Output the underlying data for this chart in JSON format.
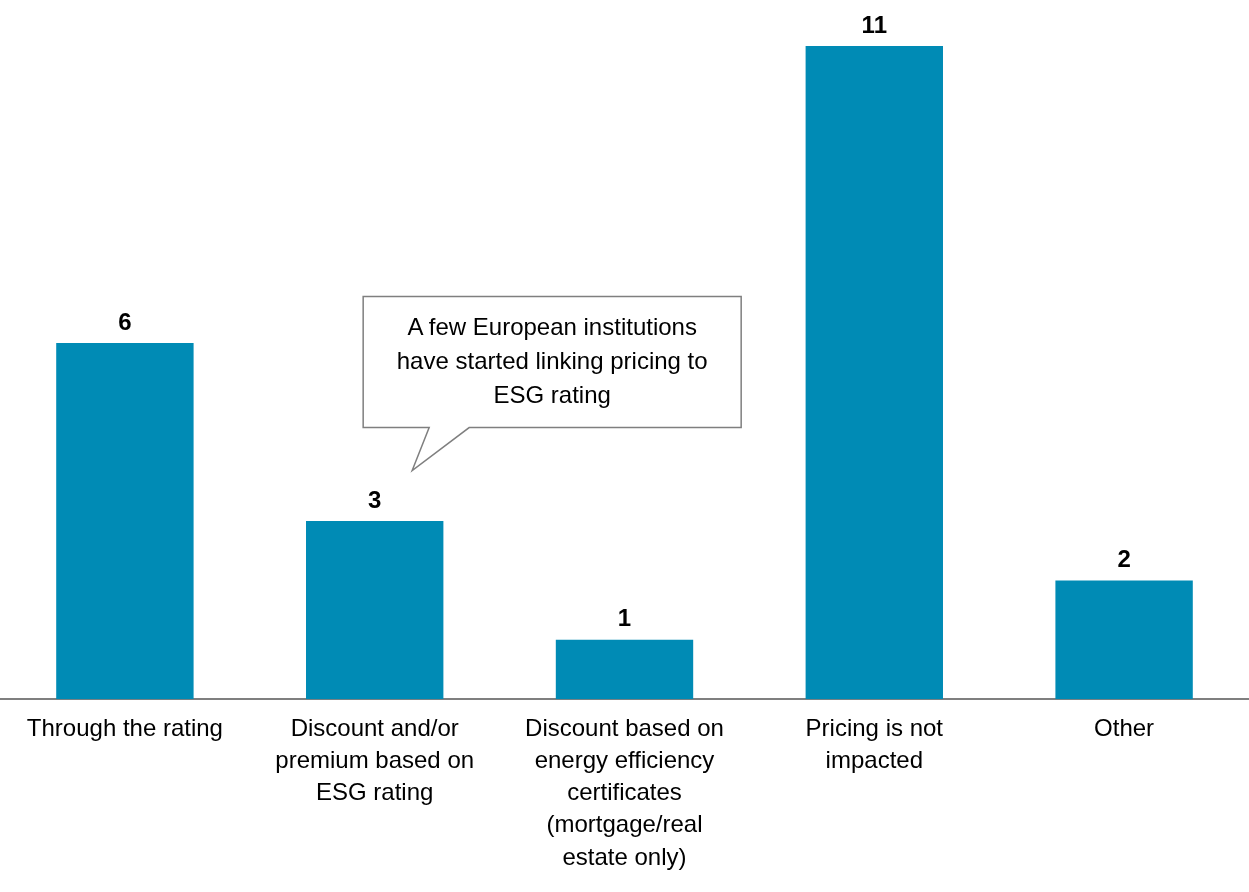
{
  "chart_data": {
    "type": "bar",
    "categories": [
      "Through the rating",
      "Discount and/or premium  based on ESG rating",
      "Discount based on energy efficiency certificates (mortgage/real estate only)",
      "Pricing is not impacted",
      "Other"
    ],
    "values": [
      6,
      3,
      1,
      11,
      2
    ],
    "color": "#008bb5",
    "data_labels": true,
    "legend": false,
    "grid": false,
    "annotations": [
      "A few European institutions have started linking pricing to ESG rating"
    ]
  }
}
